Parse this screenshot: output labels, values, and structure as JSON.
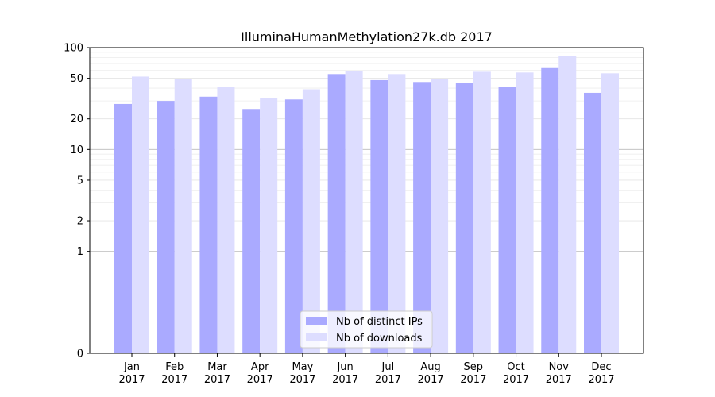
{
  "chart_data": {
    "type": "bar",
    "title": "IlluminaHumanMethylation27k.db 2017",
    "xlabel": "",
    "ylabel": "",
    "yscale": "symlog",
    "ylim": [
      0,
      100
    ],
    "ytick_labels": [
      "0",
      "1",
      "2",
      "5",
      "10",
      "20",
      "50",
      "100"
    ],
    "yticks": [
      0,
      1,
      2,
      5,
      10,
      20,
      50,
      100
    ],
    "categories": [
      [
        "Jan",
        "2017"
      ],
      [
        "Feb",
        "2017"
      ],
      [
        "Mar",
        "2017"
      ],
      [
        "Apr",
        "2017"
      ],
      [
        "May",
        "2017"
      ],
      [
        "Jun",
        "2017"
      ],
      [
        "Jul",
        "2017"
      ],
      [
        "Aug",
        "2017"
      ],
      [
        "Sep",
        "2017"
      ],
      [
        "Oct",
        "2017"
      ],
      [
        "Nov",
        "2017"
      ],
      [
        "Dec",
        "2017"
      ]
    ],
    "series": [
      {
        "name": "Nb of distinct IPs",
        "color": "#aaaaff",
        "values": [
          28,
          30,
          33,
          25,
          31,
          55,
          48,
          46,
          45,
          41,
          63,
          36
        ]
      },
      {
        "name": "Nb of downloads",
        "color": "#ddddff",
        "values": [
          52,
          49,
          41,
          32,
          39,
          59,
          55,
          49,
          58,
          57,
          83,
          56
        ]
      }
    ],
    "legend_position": "lower-center",
    "grid": true
  }
}
